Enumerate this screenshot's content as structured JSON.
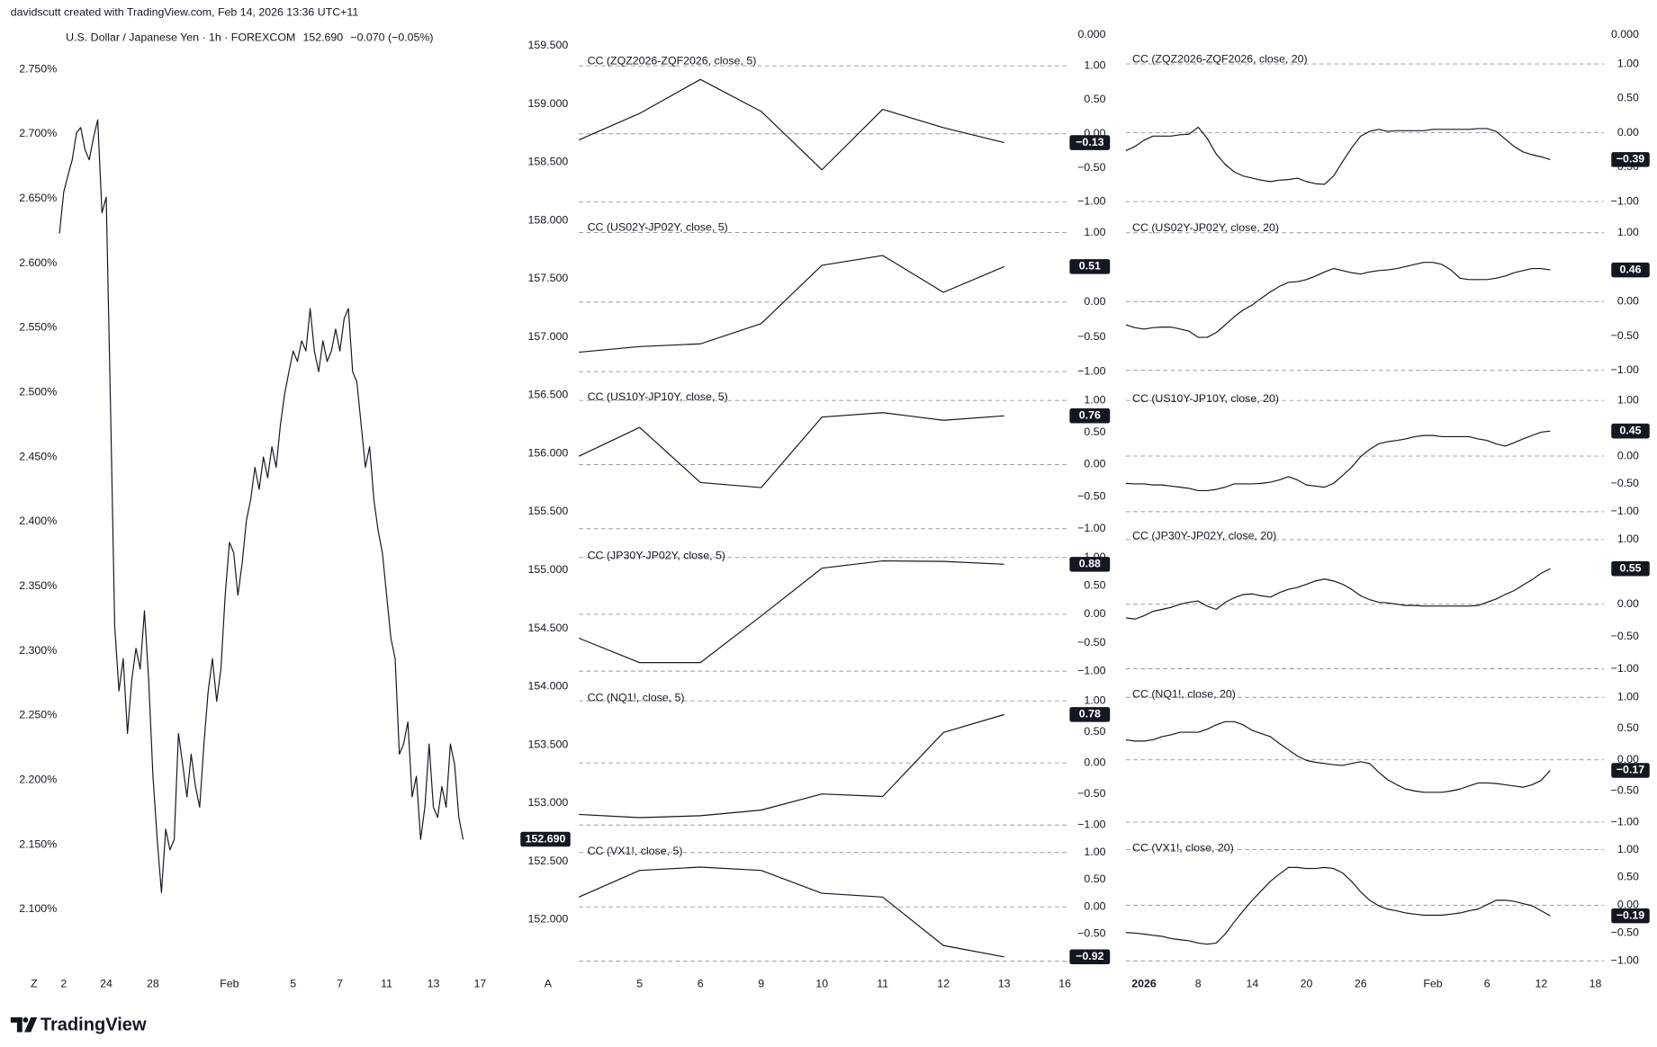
{
  "header": {
    "author_line": "davidscutt created with TradingView.com, Feb 14, 2026 13:36 UTC+11",
    "logo": "TradingView"
  },
  "chart_data": [
    {
      "type": "line",
      "title": "U.S. Dollar / Japanese Yen · 1h · FOREXCOM",
      "last_price": "152.690",
      "change": "−0.070 (−0.05%)",
      "color": "#131722",
      "ylim": [
        2.06,
        2.77
      ],
      "yticks": [
        {
          "value": 2.75,
          "label": "2.750%"
        },
        {
          "value": 2.7,
          "label": "2.700%"
        },
        {
          "value": 2.65,
          "label": "2.650%"
        },
        {
          "value": 2.6,
          "label": "2.600%"
        },
        {
          "value": 2.55,
          "label": "2.550%"
        },
        {
          "value": 2.5,
          "label": "2.500%"
        },
        {
          "value": 2.45,
          "label": "2.450%"
        },
        {
          "value": 2.4,
          "label": "2.400%"
        },
        {
          "value": 2.35,
          "label": "2.350%"
        },
        {
          "value": 2.3,
          "label": "2.300%"
        },
        {
          "value": 2.25,
          "label": "2.250%"
        },
        {
          "value": 2.2,
          "label": "2.200%"
        },
        {
          "value": 2.15,
          "label": "2.150%"
        },
        {
          "value": 2.1,
          "label": "2.100%"
        }
      ],
      "categories": [
        "Z",
        null,
        null,
        null,
        null,
        null,
        null,
        "2",
        null,
        null,
        null,
        null,
        null,
        null,
        null,
        null,
        null,
        "24",
        null,
        null,
        null,
        null,
        null,
        null,
        null,
        null,
        null,
        null,
        "28",
        null,
        null,
        null,
        null,
        null,
        null,
        null,
        null,
        null,
        null,
        null,
        null,
        null,
        null,
        null,
        null,
        null,
        "Feb",
        null,
        null,
        null,
        null,
        null,
        null,
        null,
        null,
        null,
        null,
        null,
        null,
        null,
        null,
        "5",
        null,
        null,
        null,
        null,
        null,
        null,
        null,
        null,
        null,
        null,
        "7",
        null,
        null,
        null,
        null,
        null,
        null,
        null,
        null,
        null,
        null,
        "11",
        null,
        null,
        null,
        null,
        null,
        null,
        null,
        null,
        null,
        null,
        "13",
        null,
        null,
        null,
        null,
        null,
        null,
        null,
        null,
        null,
        null,
        "17"
      ],
      "values": [
        null,
        null,
        null,
        null,
        null,
        null,
        2.623,
        2.655,
        2.668,
        2.68,
        2.701,
        2.705,
        2.688,
        2.68,
        2.697,
        2.711,
        2.639,
        2.651,
        2.491,
        2.319,
        2.269,
        2.294,
        2.236,
        2.277,
        2.302,
        2.286,
        2.331,
        2.277,
        2.203,
        2.154,
        2.113,
        2.162,
        2.146,
        2.154,
        2.236,
        2.212,
        2.187,
        2.22,
        2.195,
        2.179,
        2.228,
        2.269,
        2.294,
        2.261,
        2.286,
        2.343,
        2.384,
        2.376,
        2.343,
        2.368,
        2.401,
        2.417,
        2.442,
        2.425,
        2.45,
        2.434,
        2.458,
        2.442,
        2.475,
        2.499,
        2.516,
        2.532,
        2.524,
        2.54,
        2.532,
        2.565,
        2.532,
        2.516,
        2.54,
        2.524,
        2.532,
        2.549,
        2.532,
        2.557,
        2.565,
        2.516,
        2.508,
        2.475,
        2.442,
        2.458,
        2.417,
        2.393,
        2.376,
        2.343,
        2.31,
        2.294,
        2.22,
        2.228,
        2.245,
        2.187,
        2.203,
        2.154,
        2.179,
        2.228,
        2.179,
        2.171,
        2.195,
        2.179,
        2.228,
        2.212,
        2.171,
        2.154,
        null,
        null,
        null,
        null
      ]
    },
    {
      "type": "price_axis",
      "ylim": [
        151.7,
        159.6
      ],
      "yticks": [
        {
          "value": 159.5,
          "label": "159.500"
        },
        {
          "value": 159,
          "label": "159.000"
        },
        {
          "value": 158.5,
          "label": "158.500"
        },
        {
          "value": 158,
          "label": "158.000"
        },
        {
          "value": 157.5,
          "label": "157.500"
        },
        {
          "value": 157,
          "label": "157.000"
        },
        {
          "value": 156.5,
          "label": "156.500"
        },
        {
          "value": 156,
          "label": "156.000"
        },
        {
          "value": 155.5,
          "label": "155.500"
        },
        {
          "value": 155,
          "label": "155.000"
        },
        {
          "value": 154.5,
          "label": "154.500"
        },
        {
          "value": 154,
          "label": "154.000"
        },
        {
          "value": 153.5,
          "label": "153.500"
        },
        {
          "value": 153,
          "label": "153.000"
        },
        {
          "value": 152.5,
          "label": "152.500"
        },
        {
          "value": 152,
          "label": "152.000"
        }
      ],
      "last_value": {
        "value": 152.69,
        "label": "152.690"
      },
      "corner_label": "A"
    },
    {
      "type": "multi_panel_line",
      "scale_label": "0.000",
      "ylim": [
        -1.25,
        1.25
      ],
      "yticks": [
        {
          "value": 1,
          "label": "1.00"
        },
        {
          "value": 0.5,
          "label": "0.50"
        },
        {
          "value": 0,
          "label": "0.00"
        },
        {
          "value": -0.5,
          "label": "−0.50"
        },
        {
          "value": -1,
          "label": "−1.00"
        }
      ],
      "dashed_levels": [
        1,
        0,
        -1
      ],
      "categories": [
        null,
        "5",
        "6",
        "9",
        "10",
        "11",
        "12",
        "13",
        "16"
      ],
      "panels": [
        {
          "title": "CC (ZQZ2026-ZQF2026, close, 5)",
          "color": "#131722",
          "values": [
            -0.09,
            0.3,
            0.8,
            0.33,
            -0.53,
            0.36,
            0.09,
            -0.13,
            null
          ],
          "last_label": "−0.13"
        },
        {
          "title": "CC (US02Y-JP02Y, close, 5)",
          "color": "#131722",
          "values": [
            -0.72,
            -0.64,
            -0.6,
            -0.31,
            0.53,
            0.67,
            0.14,
            0.51,
            null
          ],
          "last_label": "0.51"
        },
        {
          "title": "CC (US10Y-JP10Y, close, 5)",
          "color": "#131722",
          "values": [
            0.13,
            0.58,
            -0.28,
            -0.36,
            0.74,
            0.81,
            0.69,
            0.76,
            null
          ],
          "last_label": "0.76"
        },
        {
          "title": "CC (JP30Y-JP02Y, close, 5)",
          "color": "#131722",
          "values": [
            -0.42,
            -0.85,
            -0.85,
            -0.03,
            0.81,
            0.94,
            0.93,
            0.88,
            null
          ],
          "last_label": "0.88"
        },
        {
          "title": "CC (NQ1!, close, 5)",
          "color": "#131722",
          "values": [
            -0.83,
            -0.88,
            -0.85,
            -0.76,
            -0.5,
            -0.54,
            0.49,
            0.78,
            null
          ],
          "last_label": "0.78"
        },
        {
          "title": "CC (VX1!, close, 5)",
          "color": "#131722",
          "values": [
            0.18,
            0.67,
            0.73,
            0.67,
            0.25,
            0.18,
            -0.71,
            -0.92,
            null
          ],
          "last_label": "−0.92"
        }
      ]
    },
    {
      "type": "multi_panel_line",
      "scale_label": "0.000",
      "ylim": [
        -1.25,
        1.25
      ],
      "yticks": [
        {
          "value": 1,
          "label": "1.00"
        },
        {
          "value": 0.5,
          "label": "0.50"
        },
        {
          "value": 0,
          "label": "0.00"
        },
        {
          "value": -0.5,
          "label": "−0.50"
        },
        {
          "value": -1,
          "label": "−1.00"
        }
      ],
      "dashed_levels": [
        1,
        0,
        -1
      ],
      "categories": [
        null,
        null,
        "2026",
        null,
        null,
        null,
        null,
        null,
        "8",
        null,
        null,
        null,
        null,
        null,
        "14",
        null,
        null,
        null,
        null,
        null,
        "20",
        null,
        null,
        null,
        null,
        null,
        "26",
        null,
        null,
        null,
        null,
        null,
        null,
        null,
        "Feb",
        null,
        null,
        null,
        null,
        null,
        "6",
        null,
        null,
        null,
        null,
        null,
        "12",
        null,
        null,
        null,
        null,
        null,
        "18"
      ],
      "panels": [
        {
          "title": "CC (ZQZ2026-ZQF2026, close, 20)",
          "color": "#131722",
          "last_label": "−0.39",
          "values": [
            -0.26,
            -0.2,
            -0.11,
            -0.05,
            -0.05,
            -0.05,
            -0.03,
            -0.02,
            0.08,
            -0.08,
            -0.31,
            -0.46,
            -0.57,
            -0.63,
            -0.66,
            -0.69,
            -0.71,
            -0.69,
            -0.68,
            -0.66,
            -0.71,
            -0.74,
            -0.75,
            -0.63,
            -0.42,
            -0.22,
            -0.05,
            0.02,
            0.05,
            0.02,
            0.03,
            0.03,
            0.03,
            0.03,
            0.05,
            0.05,
            0.05,
            0.05,
            0.05,
            0.06,
            0.06,
            0.02,
            -0.09,
            -0.2,
            -0.28,
            -0.32,
            -0.35,
            -0.39,
            null,
            null,
            null,
            null,
            null
          ]
        },
        {
          "title": "CC (US02Y-JP02Y, close, 20)",
          "color": "#131722",
          "last_label": "0.46",
          "values": [
            -0.34,
            -0.38,
            -0.4,
            -0.38,
            -0.37,
            -0.37,
            -0.4,
            -0.43,
            -0.52,
            -0.52,
            -0.45,
            -0.34,
            -0.22,
            -0.12,
            -0.05,
            0.05,
            0.14,
            0.22,
            0.28,
            0.29,
            0.32,
            0.37,
            0.43,
            0.48,
            0.45,
            0.42,
            0.4,
            0.43,
            0.45,
            0.46,
            0.48,
            0.51,
            0.54,
            0.57,
            0.57,
            0.54,
            0.46,
            0.34,
            0.32,
            0.32,
            0.32,
            0.34,
            0.37,
            0.42,
            0.45,
            0.48,
            0.48,
            0.46,
            null,
            null,
            null,
            null,
            null
          ]
        },
        {
          "title": "CC (US10Y-JP10Y, close, 20)",
          "color": "#131722",
          "last_label": "0.45",
          "values": [
            -0.49,
            -0.5,
            -0.5,
            -0.52,
            -0.52,
            -0.54,
            -0.56,
            -0.58,
            -0.62,
            -0.62,
            -0.6,
            -0.56,
            -0.5,
            -0.5,
            -0.5,
            -0.49,
            -0.47,
            -0.43,
            -0.37,
            -0.43,
            -0.52,
            -0.54,
            -0.56,
            -0.49,
            -0.35,
            -0.2,
            -0.01,
            0.12,
            0.22,
            0.26,
            0.28,
            0.31,
            0.35,
            0.37,
            0.37,
            0.35,
            0.35,
            0.35,
            0.35,
            0.31,
            0.28,
            0.22,
            0.18,
            0.24,
            0.31,
            0.37,
            0.43,
            0.45,
            null,
            null,
            null,
            null,
            null
          ]
        },
        {
          "title": "CC (JP30Y-JP02Y, close, 20)",
          "color": "#131722",
          "last_label": "0.55",
          "values": [
            -0.21,
            -0.23,
            -0.18,
            -0.11,
            -0.08,
            -0.05,
            0.0,
            0.03,
            0.05,
            -0.03,
            -0.08,
            0.03,
            0.1,
            0.15,
            0.16,
            0.13,
            0.11,
            0.18,
            0.23,
            0.26,
            0.31,
            0.36,
            0.39,
            0.36,
            0.31,
            0.23,
            0.13,
            0.07,
            0.03,
            0.02,
            0.0,
            -0.02,
            -0.02,
            -0.03,
            -0.03,
            -0.03,
            -0.03,
            -0.03,
            -0.03,
            -0.02,
            0.03,
            0.08,
            0.15,
            0.21,
            0.3,
            0.38,
            0.48,
            0.55,
            null,
            null,
            null,
            null,
            null
          ]
        },
        {
          "title": "CC (NQ1!, close, 20)",
          "color": "#131722",
          "last_label": "−0.17",
          "values": [
            0.32,
            0.3,
            0.3,
            0.32,
            0.37,
            0.4,
            0.44,
            0.44,
            0.44,
            0.49,
            0.56,
            0.61,
            0.61,
            0.56,
            0.47,
            0.42,
            0.37,
            0.26,
            0.16,
            0.06,
            -0.01,
            -0.04,
            -0.06,
            -0.08,
            -0.09,
            -0.06,
            -0.03,
            -0.06,
            -0.2,
            -0.32,
            -0.4,
            -0.47,
            -0.5,
            -0.52,
            -0.52,
            -0.52,
            -0.5,
            -0.47,
            -0.42,
            -0.37,
            -0.37,
            -0.38,
            -0.4,
            -0.42,
            -0.44,
            -0.4,
            -0.33,
            -0.17,
            null,
            null,
            null,
            null,
            null
          ]
        },
        {
          "title": "CC (VX1!, close, 20)",
          "color": "#131722",
          "last_label": "−0.19",
          "values": [
            -0.49,
            -0.5,
            -0.52,
            -0.54,
            -0.56,
            -0.6,
            -0.62,
            -0.64,
            -0.68,
            -0.7,
            -0.68,
            -0.52,
            -0.3,
            -0.1,
            0.09,
            0.26,
            0.43,
            0.56,
            0.68,
            0.68,
            0.66,
            0.66,
            0.68,
            0.66,
            0.58,
            0.43,
            0.24,
            0.09,
            -0.01,
            -0.07,
            -0.1,
            -0.14,
            -0.16,
            -0.18,
            -0.18,
            -0.18,
            -0.16,
            -0.14,
            -0.1,
            -0.07,
            0.01,
            0.09,
            0.09,
            0.07,
            0.03,
            -0.01,
            -0.1,
            -0.19,
            null,
            null,
            null,
            null,
            null
          ]
        }
      ]
    }
  ]
}
